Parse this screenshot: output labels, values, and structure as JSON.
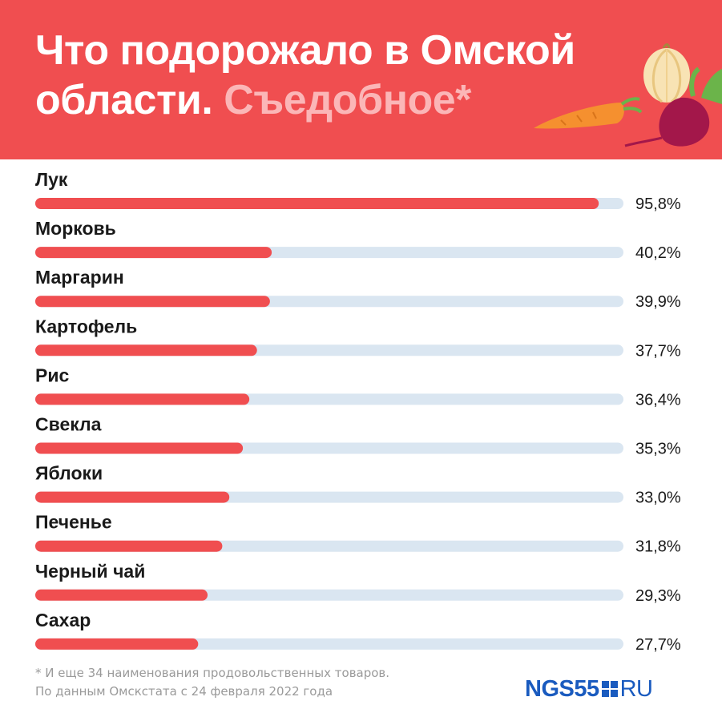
{
  "header": {
    "title_main": "Что подорожало в Омской области.",
    "title_accent": "Съедобное*"
  },
  "chart_data": {
    "type": "bar",
    "orientation": "horizontal",
    "categories": [
      "Лук",
      "Морковь",
      "Маргарин",
      "Картофель",
      "Рис",
      "Свекла",
      "Яблоки",
      "Печенье",
      "Черный чай",
      "Сахар"
    ],
    "values": [
      95.8,
      40.2,
      39.9,
      37.7,
      36.4,
      35.3,
      33.0,
      31.8,
      29.3,
      27.7
    ],
    "value_labels": [
      "95,8%",
      "40,2%",
      "39,9%",
      "37,7%",
      "36,4%",
      "35,3%",
      "33,0%",
      "31,8%",
      "29,3%",
      "27,7%"
    ],
    "xlim": [
      0,
      100
    ],
    "unit": "%",
    "grid": false,
    "colors": {
      "bar": "#f04e50",
      "track": "#dae6f1"
    }
  },
  "footnote": {
    "line1": "* И еще 34 наименования продовольственных товаров.",
    "line2": "По данным Омскстата с 24 февраля 2022 года"
  },
  "logo": {
    "main": "NGS55",
    "suffix": "RU"
  },
  "colors": {
    "header_bg": "#f04e50",
    "accent_text": "#fbb6b7",
    "logo": "#1a5bbf"
  },
  "decor": {
    "illustration": "onion-carrot-beet-illustration"
  }
}
